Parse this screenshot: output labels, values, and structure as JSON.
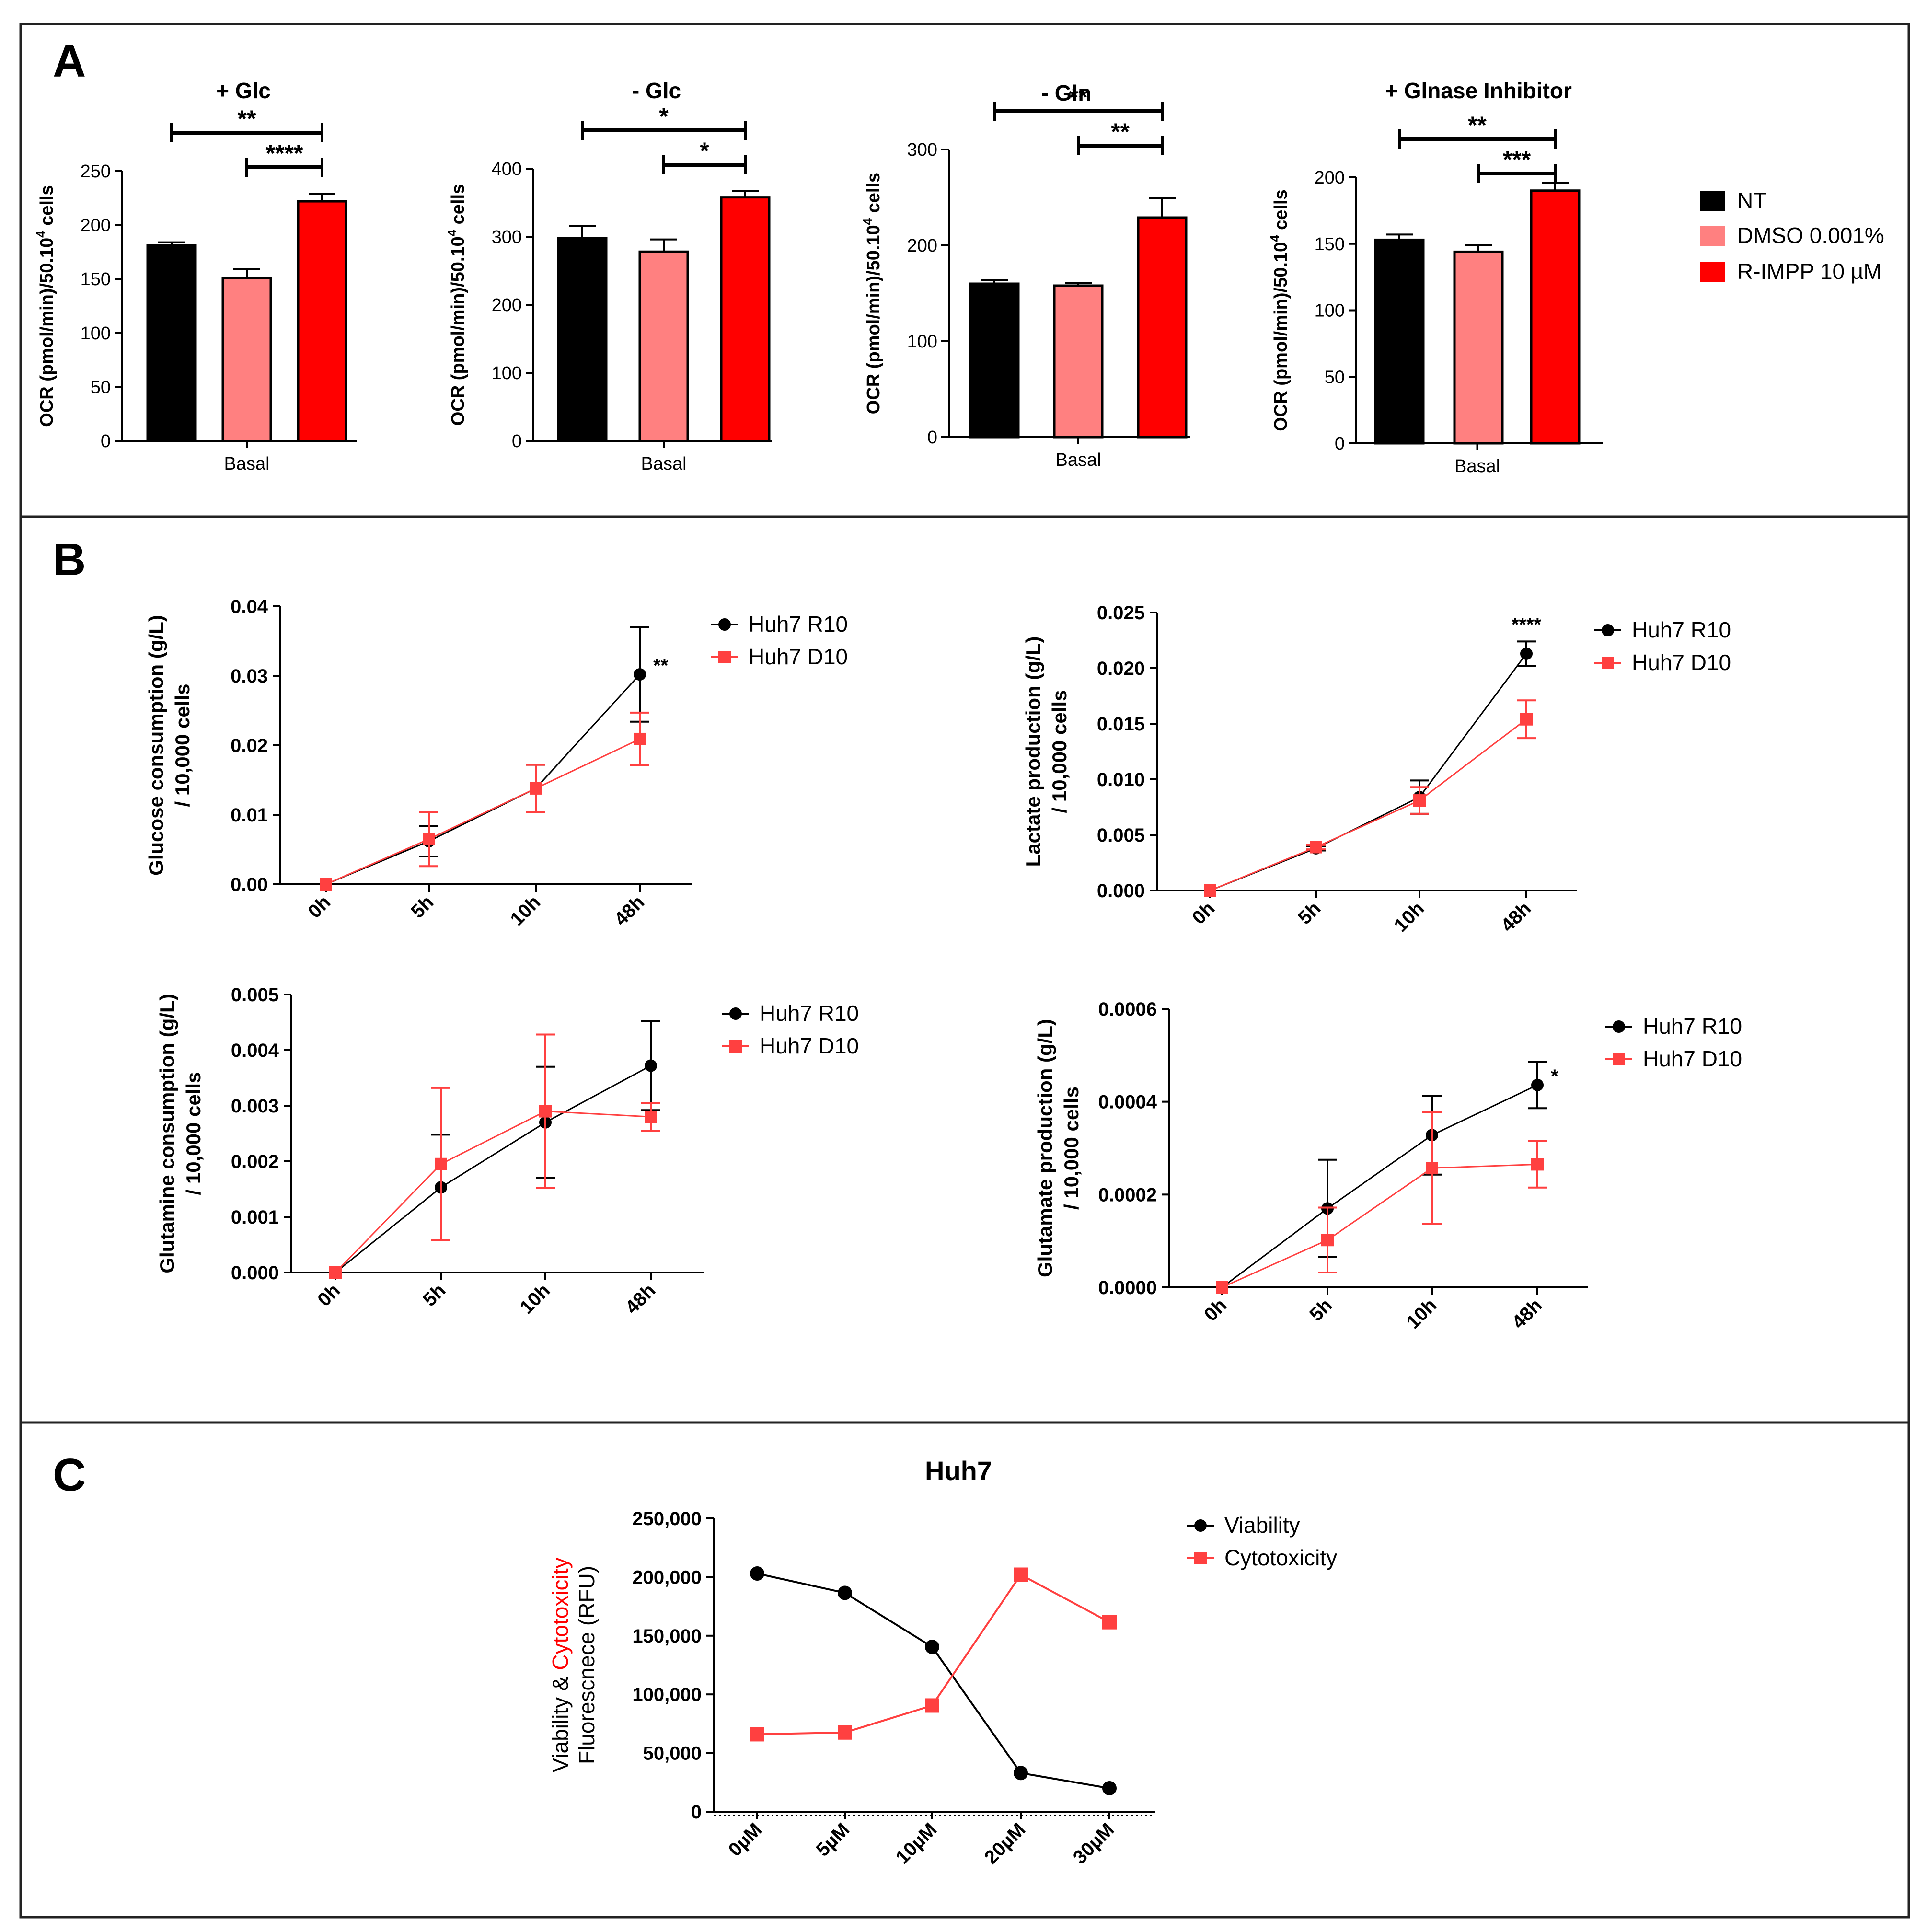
{
  "panels": {
    "A": {
      "letter": "A"
    },
    "B": {
      "letter": "B"
    },
    "C": {
      "letter": "C"
    }
  },
  "colors": {
    "black": "#000000",
    "pink": "#FF8080",
    "red": "#FF0000",
    "red_line": "#FF4040"
  },
  "chart_data": [
    {
      "id": "A1",
      "type": "bar",
      "title": "+ Glc",
      "xlabel": "Basal",
      "ylabel": "OCR (pmol/min)/50.10",
      "ylabel_sup": "4",
      "ylabel_tail": " cells",
      "ylim": [
        0,
        250
      ],
      "ticks": [
        0,
        50,
        100,
        150,
        200,
        250
      ],
      "categories": [
        "NT",
        "DMSO 0.001%",
        "R-IMPP 10 µM"
      ],
      "values": [
        181,
        151,
        222
      ],
      "errors": [
        3,
        8,
        7
      ],
      "significance": [
        {
          "from": 0,
          "to": 2,
          "label": "**"
        },
        {
          "from": 1,
          "to": 2,
          "label": "****"
        }
      ]
    },
    {
      "id": "A2",
      "type": "bar",
      "title": "- Glc",
      "xlabel": "Basal",
      "ylabel": "OCR (pmol/min)/50.10",
      "ylabel_sup": "4",
      "ylabel_tail": " cells",
      "ylim": [
        0,
        400
      ],
      "ticks": [
        0,
        100,
        200,
        300,
        400
      ],
      "categories": [
        "NT",
        "DMSO 0.001%",
        "R-IMPP 10 µM"
      ],
      "values": [
        298,
        278,
        358
      ],
      "errors": [
        18,
        18,
        9
      ],
      "significance": [
        {
          "from": 0,
          "to": 2,
          "label": "*"
        },
        {
          "from": 1,
          "to": 2,
          "label": "*"
        }
      ]
    },
    {
      "id": "A3",
      "type": "bar",
      "title": "- Gln",
      "xlabel": "Basal",
      "ylabel": "OCR (pmol/min)/50.10",
      "ylabel_sup": "4",
      "ylabel_tail": " cells",
      "ylim": [
        0,
        300
      ],
      "ticks": [
        0,
        100,
        200,
        300
      ],
      "categories": [
        "NT",
        "DMSO 0.001%",
        "R-IMPP 10 µM"
      ],
      "values": [
        160,
        158,
        229
      ],
      "errors": [
        4,
        3,
        20
      ],
      "significance": [
        {
          "from": 0,
          "to": 2,
          "label": "**"
        },
        {
          "from": 1,
          "to": 2,
          "label": "**"
        }
      ]
    },
    {
      "id": "A4",
      "type": "bar",
      "title": "+ Glnase Inhibitor",
      "xlabel": "Basal",
      "ylabel": "OCR (pmol/min)/50.10",
      "ylabel_sup": "4",
      "ylabel_tail": " cells",
      "ylim": [
        0,
        200
      ],
      "ticks": [
        0,
        50,
        100,
        150,
        200
      ],
      "categories": [
        "NT",
        "DMSO 0.001%",
        "R-IMPP 10 µM"
      ],
      "values": [
        153,
        144,
        190
      ],
      "errors": [
        4,
        5,
        6
      ],
      "significance": [
        {
          "from": 0,
          "to": 2,
          "label": "**"
        },
        {
          "from": 1,
          "to": 2,
          "label": "***"
        }
      ]
    },
    {
      "id": "B1",
      "type": "line",
      "ylabel": [
        "Glucose consumption (g/L)",
        "/ 10,000 cells"
      ],
      "categories": [
        "0h",
        "5h",
        "10h",
        "48h"
      ],
      "ylim": [
        0,
        0.04
      ],
      "ticks": [
        "0.00",
        "0.01",
        "0.02",
        "0.03",
        "0.04"
      ],
      "series": [
        {
          "name": "Huh7 R10",
          "values": [
            0,
            0.0062,
            0.0138,
            0.0302
          ],
          "errors": [
            0,
            0.0022,
            0.0034,
            0.0068
          ]
        },
        {
          "name": "Huh7 D10",
          "values": [
            0,
            0.0065,
            0.0138,
            0.0209
          ],
          "errors": [
            0,
            0.0039,
            0.0034,
            0.0038
          ]
        }
      ],
      "annotations": [
        {
          "point": 3,
          "label": "**"
        }
      ]
    },
    {
      "id": "B2",
      "type": "line",
      "ylabel": [
        "Lactate production (g/L)",
        "/ 10,000 cells"
      ],
      "categories": [
        "0h",
        "5h",
        "10h",
        "48h"
      ],
      "ylim": [
        0,
        0.025
      ],
      "ticks": [
        "0.000",
        "0.005",
        "0.010",
        "0.015",
        "0.020",
        "0.025"
      ],
      "series": [
        {
          "name": "Huh7 R10",
          "values": [
            0,
            0.0038,
            0.0084,
            0.0213
          ],
          "errors": [
            0,
            0.0002,
            0.0015,
            0.0011
          ]
        },
        {
          "name": "Huh7 D10",
          "values": [
            0,
            0.0039,
            0.0081,
            0.0154
          ],
          "errors": [
            0,
            0.0002,
            0.0012,
            0.0017
          ]
        }
      ],
      "annotations": [
        {
          "point": 3,
          "label": "****"
        }
      ]
    },
    {
      "id": "B3",
      "type": "line",
      "ylabel": [
        "Glutamine consumption (g/L)",
        "/ 10,000 cells"
      ],
      "categories": [
        "0h",
        "5h",
        "10h",
        "48h"
      ],
      "ylim": [
        0,
        0.005
      ],
      "ticks": [
        "0.000",
        "0.001",
        "0.002",
        "0.003",
        "0.004",
        "0.005"
      ],
      "series": [
        {
          "name": "Huh7 R10",
          "values": [
            0,
            0.00153,
            0.0027,
            0.00372
          ],
          "errors": [
            0,
            0.00095,
            0.001,
            0.0008
          ]
        },
        {
          "name": "Huh7 D10",
          "values": [
            0,
            0.00195,
            0.0029,
            0.0028
          ],
          "errors": [
            0,
            0.00137,
            0.00138,
            0.00025
          ]
        }
      ],
      "annotations": []
    },
    {
      "id": "B4",
      "type": "line",
      "ylabel": [
        "Glutamate production (g/L)",
        "/ 10,000 cells"
      ],
      "categories": [
        "0h",
        "5h",
        "10h",
        "48h"
      ],
      "ylim": [
        0,
        0.0006
      ],
      "ticks": [
        "0.0000",
        "0.0002",
        "0.0004",
        "0.0006"
      ],
      "series": [
        {
          "name": "Huh7 R10",
          "values": [
            0,
            0.00017,
            0.000328,
            0.000436
          ],
          "errors": [
            0,
            0.000105,
            8.5e-05,
            5e-05
          ]
        },
        {
          "name": "Huh7 D10",
          "values": [
            0,
            0.000102,
            0.000257,
            0.000265
          ],
          "errors": [
            0,
            7e-05,
            0.00012,
            5e-05
          ]
        }
      ],
      "annotations": [
        {
          "point": 3,
          "label": "*"
        }
      ]
    },
    {
      "id": "C",
      "type": "line",
      "title": "Huh7",
      "ylabel_parts": {
        "a": "Viability & ",
        "b": "Cytotoxicity",
        "c": "Fluorescnece (RFU)"
      },
      "categories": [
        "0µM",
        "5µM",
        "10µM",
        "20µM",
        "30µM"
      ],
      "ylim": [
        0,
        250000
      ],
      "ticks": [
        "0",
        "50,000",
        "100,000",
        "150,000",
        "200,000",
        "250,000"
      ],
      "series": [
        {
          "name": "Viability",
          "values": [
            203000,
            186500,
            140500,
            33000,
            20000
          ]
        },
        {
          "name": "Cytotoxicity",
          "values": [
            66000,
            67500,
            90500,
            202000,
            161500
          ]
        }
      ]
    }
  ]
}
